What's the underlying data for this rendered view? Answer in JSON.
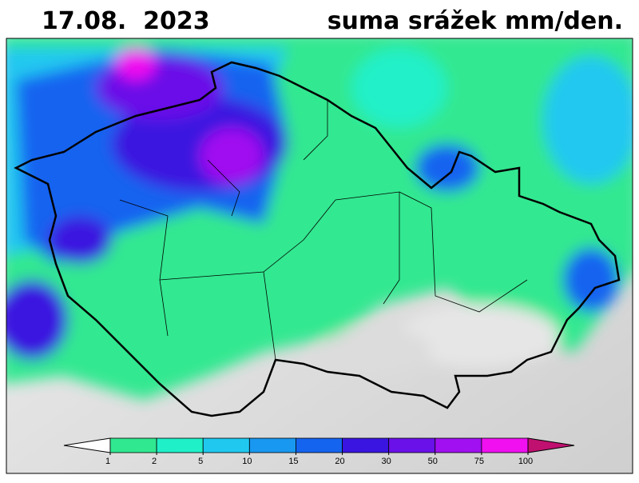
{
  "header": {
    "date": "17.08.  2023",
    "title": "suma srážek mm/den."
  },
  "legend": {
    "ticks": [
      1,
      2,
      5,
      10,
      15,
      20,
      30,
      50,
      75,
      100
    ],
    "colors": [
      "#ffffff",
      "#30e890",
      "#20f0c8",
      "#20c8f0",
      "#1898f0",
      "#1464f0",
      "#3a14e0",
      "#6a10e8",
      "#a010f0",
      "#f010f0",
      "#c01070"
    ]
  }
}
